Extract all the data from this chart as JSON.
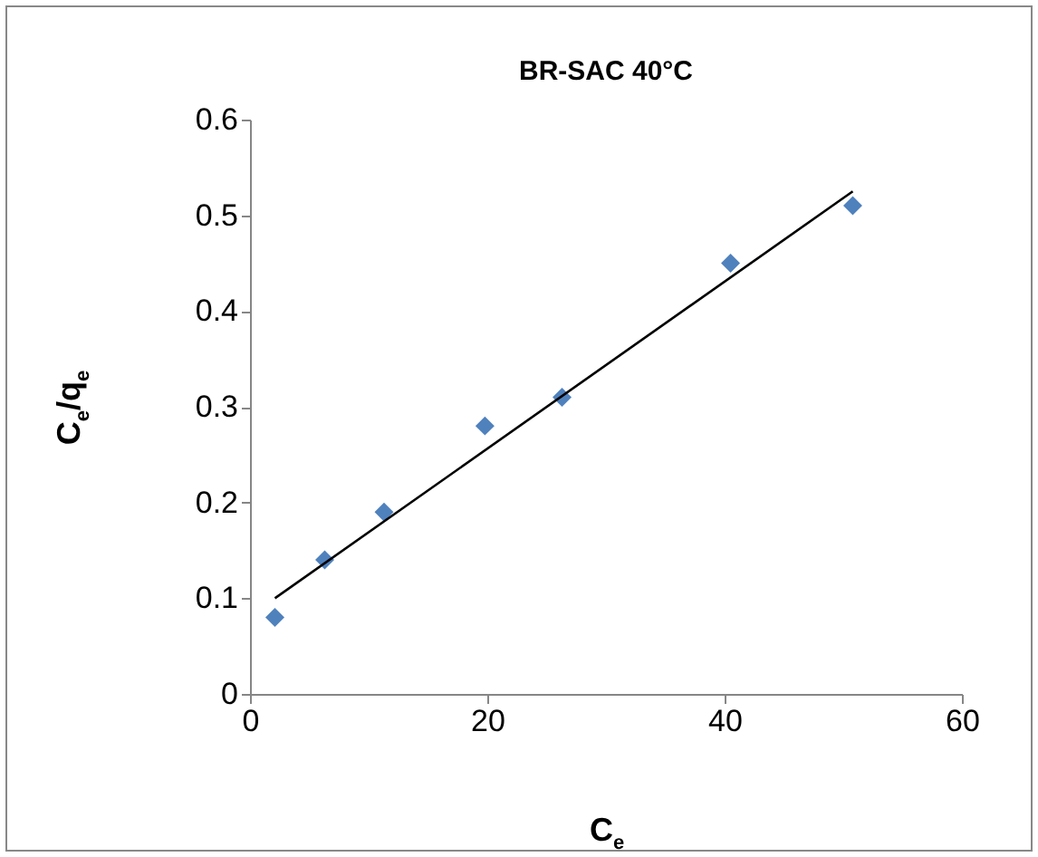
{
  "chart_data": {
    "type": "scatter",
    "title": "BR-SAC 40°C",
    "xlabel": "C$_{e}$",
    "ylabel": "C$_{e}$/q$_{e}$",
    "xlim": [
      0,
      60
    ],
    "xticks": [
      0,
      20,
      40,
      60
    ],
    "ylim": [
      0,
      0.6
    ],
    "yticks": [
      0,
      0.1,
      0.2,
      0.3,
      0.4,
      0.5,
      0.6
    ],
    "grid": false,
    "legend": false,
    "series": [
      {
        "marker": "diamond",
        "color": "#4f81bd",
        "x": [
          2.1,
          6.3,
          11.3,
          19.8,
          26.3,
          40.5,
          50.8
        ],
        "values": [
          0.08,
          0.14,
          0.19,
          0.28,
          0.31,
          0.45,
          0.51
        ]
      },
      {
        "type": "line",
        "marker": "none",
        "color": "#000000",
        "x": [
          2.1,
          50.8
        ],
        "values": [
          0.1,
          0.525
        ]
      }
    ]
  }
}
